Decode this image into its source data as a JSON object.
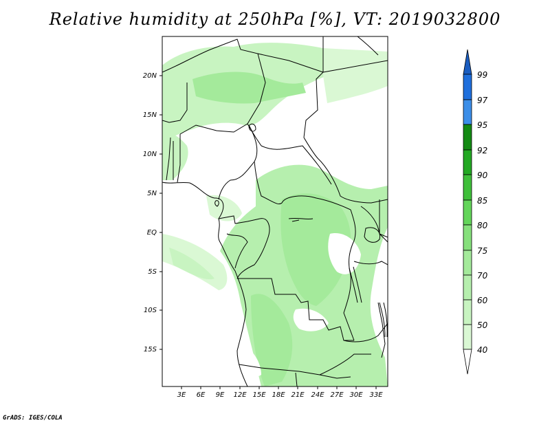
{
  "title": "Relative humidity at 250hPa [%], VT: 2019032800",
  "footer": "GrADS: IGES/COLA",
  "map": {
    "lat_labels": [
      "20N",
      "15N",
      "10N",
      "5N",
      "EQ",
      "5S",
      "10S",
      "15S"
    ],
    "lon_labels": [
      "3E",
      "6E",
      "9E",
      "12E",
      "15E",
      "18E",
      "21E",
      "24E",
      "27E",
      "30E",
      "33E"
    ]
  },
  "legend": {
    "labels": [
      "99",
      "97",
      "95",
      "92",
      "90",
      "85",
      "80",
      "75",
      "70",
      "60",
      "50",
      "40"
    ],
    "colors": {
      "c40": "#f2fdf0",
      "c50": "#daf8d4",
      "c60": "#c8f4c1",
      "c70": "#b6efae",
      "c75": "#a4ea9b",
      "c80": "#86e07c",
      "c85": "#63d55a",
      "c90": "#3fbf3a",
      "c92": "#23a823",
      "c95": "#138a13",
      "c97": "#3c8ee8",
      "c99": "#1f6fdc",
      "cTop": "#1a5dc0"
    }
  }
}
